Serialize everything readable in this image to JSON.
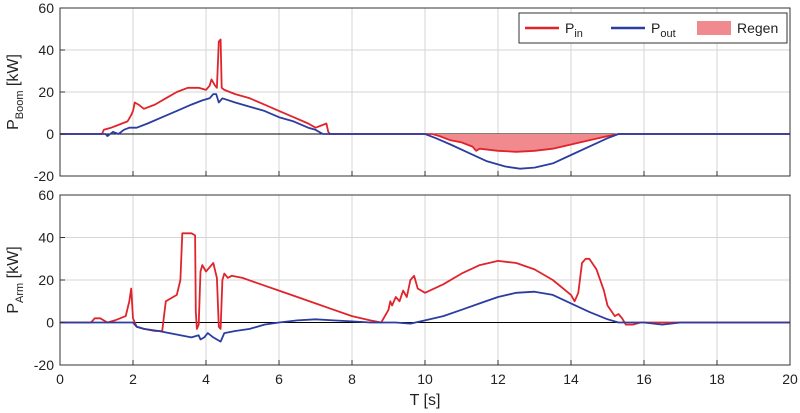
{
  "chart_data": [
    {
      "type": "line",
      "id": "boom",
      "ylabel": {
        "main": "P",
        "sub": "Boom",
        "unit": " [kW]"
      },
      "xlim": [
        0,
        20
      ],
      "ylim": [
        -20,
        60
      ],
      "xticks": [
        0,
        2,
        4,
        6,
        8,
        10,
        12,
        14,
        16,
        18,
        20
      ],
      "yticks": [
        -20,
        0,
        20,
        40,
        60
      ],
      "grid": true,
      "legend": {
        "placement": "top-right",
        "items": [
          {
            "main": "P",
            "sub": "in",
            "kind": "line",
            "color": "#e0242b"
          },
          {
            "main": "P",
            "sub": "out",
            "kind": "line",
            "color": "#2b3da0"
          },
          {
            "main": "Regen",
            "sub": "",
            "kind": "area",
            "color": "#f08a8f"
          }
        ]
      },
      "series": [
        {
          "name": "Pin",
          "color": "#e0242b",
          "points": [
            [
              0,
              0
            ],
            [
              1.15,
              0
            ],
            [
              1.2,
              2
            ],
            [
              1.4,
              3
            ],
            [
              1.55,
              4
            ],
            [
              1.7,
              5
            ],
            [
              1.85,
              6
            ],
            [
              1.95,
              9
            ],
            [
              2.0,
              11
            ],
            [
              2.05,
              15
            ],
            [
              2.15,
              14
            ],
            [
              2.3,
              12
            ],
            [
              2.6,
              14
            ],
            [
              2.9,
              17
            ],
            [
              3.2,
              20
            ],
            [
              3.5,
              22
            ],
            [
              3.8,
              22
            ],
            [
              4.0,
              21
            ],
            [
              4.1,
              23
            ],
            [
              4.15,
              26
            ],
            [
              4.25,
              23
            ],
            [
              4.3,
              22
            ],
            [
              4.35,
              44
            ],
            [
              4.4,
              45
            ],
            [
              4.43,
              22
            ],
            [
              4.5,
              21
            ],
            [
              4.8,
              19
            ],
            [
              5.2,
              17
            ],
            [
              5.6,
              14
            ],
            [
              6.0,
              11
            ],
            [
              6.4,
              8
            ],
            [
              6.8,
              5
            ],
            [
              7.0,
              3
            ],
            [
              7.15,
              4
            ],
            [
              7.3,
              5
            ],
            [
              7.35,
              1
            ],
            [
              7.4,
              0
            ],
            [
              10.2,
              0
            ],
            [
              10.4,
              -1
            ],
            [
              10.7,
              -3
            ],
            [
              11.0,
              -4
            ],
            [
              11.3,
              -6
            ],
            [
              11.4,
              -8
            ],
            [
              11.5,
              -7
            ],
            [
              12.0,
              -8
            ],
            [
              12.5,
              -8.5
            ],
            [
              13.0,
              -8
            ],
            [
              13.5,
              -7
            ],
            [
              14.0,
              -5
            ],
            [
              14.5,
              -3
            ],
            [
              15.0,
              -1
            ],
            [
              15.3,
              0
            ],
            [
              20,
              0
            ]
          ]
        },
        {
          "name": "Pout",
          "color": "#2b3da0",
          "points": [
            [
              0,
              0
            ],
            [
              1.25,
              0
            ],
            [
              1.3,
              -1
            ],
            [
              1.45,
              1
            ],
            [
              1.6,
              0
            ],
            [
              1.75,
              2
            ],
            [
              1.9,
              3
            ],
            [
              2.1,
              3
            ],
            [
              2.4,
              5
            ],
            [
              2.8,
              8
            ],
            [
              3.2,
              11
            ],
            [
              3.6,
              14
            ],
            [
              3.9,
              16
            ],
            [
              4.1,
              17
            ],
            [
              4.2,
              19
            ],
            [
              4.28,
              19
            ],
            [
              4.35,
              15
            ],
            [
              4.45,
              17
            ],
            [
              4.8,
              15
            ],
            [
              5.2,
              13
            ],
            [
              5.6,
              11
            ],
            [
              6.0,
              8
            ],
            [
              6.4,
              6
            ],
            [
              6.8,
              3
            ],
            [
              7.0,
              2
            ],
            [
              7.2,
              0
            ],
            [
              10.0,
              0
            ],
            [
              10.3,
              -2
            ],
            [
              10.7,
              -5
            ],
            [
              11.2,
              -9
            ],
            [
              11.7,
              -13
            ],
            [
              12.2,
              -15.5
            ],
            [
              12.6,
              -16.5
            ],
            [
              13.0,
              -16
            ],
            [
              13.5,
              -14
            ],
            [
              14.0,
              -10
            ],
            [
              14.5,
              -6
            ],
            [
              15.0,
              -2
            ],
            [
              15.3,
              0
            ],
            [
              20,
              0
            ]
          ]
        }
      ],
      "regen": [
        [
          10.2,
          0
        ],
        [
          10.4,
          -1
        ],
        [
          10.7,
          -3
        ],
        [
          11.0,
          -4
        ],
        [
          11.3,
          -6
        ],
        [
          11.4,
          -8
        ],
        [
          11.5,
          -7
        ],
        [
          12.0,
          -8
        ],
        [
          12.5,
          -8.5
        ],
        [
          13.0,
          -8
        ],
        [
          13.5,
          -7
        ],
        [
          14.0,
          -5
        ],
        [
          14.5,
          -3
        ],
        [
          15.0,
          -1
        ],
        [
          15.3,
          0
        ]
      ]
    },
    {
      "type": "line",
      "id": "arm",
      "ylabel": {
        "main": "P",
        "sub": "Arm",
        "unit": " [kW]"
      },
      "xlabel": "T [s]",
      "xlim": [
        0,
        20
      ],
      "ylim": [
        -20,
        60
      ],
      "xticks": [
        0,
        2,
        4,
        6,
        8,
        10,
        12,
        14,
        16,
        18,
        20
      ],
      "yticks": [
        -20,
        0,
        20,
        40,
        60
      ],
      "grid": true,
      "series": [
        {
          "name": "Pin",
          "color": "#e0242b",
          "points": [
            [
              0,
              0
            ],
            [
              0.85,
              0
            ],
            [
              0.95,
              2
            ],
            [
              1.1,
              2
            ],
            [
              1.2,
              1
            ],
            [
              1.3,
              0
            ],
            [
              1.5,
              1
            ],
            [
              1.8,
              3
            ],
            [
              1.9,
              10
            ],
            [
              1.95,
              16
            ],
            [
              2.0,
              2
            ],
            [
              2.1,
              -2
            ],
            [
              2.3,
              -3
            ],
            [
              2.6,
              -4
            ],
            [
              2.8,
              -4
            ],
            [
              2.85,
              3
            ],
            [
              2.9,
              10
            ],
            [
              3.0,
              11
            ],
            [
              3.2,
              13
            ],
            [
              3.3,
              20
            ],
            [
              3.35,
              42
            ],
            [
              3.6,
              42
            ],
            [
              3.7,
              41
            ],
            [
              3.72,
              5
            ],
            [
              3.75,
              -3
            ],
            [
              3.8,
              -1
            ],
            [
              3.85,
              24
            ],
            [
              3.9,
              27
            ],
            [
              4.0,
              24
            ],
            [
              4.1,
              26
            ],
            [
              4.2,
              28
            ],
            [
              4.3,
              21
            ],
            [
              4.35,
              -2
            ],
            [
              4.4,
              -3
            ],
            [
              4.45,
              20
            ],
            [
              4.5,
              23
            ],
            [
              4.6,
              21
            ],
            [
              4.7,
              22
            ],
            [
              5.0,
              21
            ],
            [
              5.5,
              18
            ],
            [
              6.0,
              15
            ],
            [
              6.5,
              12
            ],
            [
              7.0,
              9
            ],
            [
              7.5,
              6
            ],
            [
              8.0,
              3
            ],
            [
              8.5,
              1
            ],
            [
              8.8,
              0
            ],
            [
              8.9,
              3
            ],
            [
              9.0,
              6
            ],
            [
              9.05,
              10
            ],
            [
              9.1,
              8
            ],
            [
              9.2,
              12
            ],
            [
              9.3,
              10
            ],
            [
              9.4,
              15
            ],
            [
              9.5,
              12
            ],
            [
              9.6,
              20
            ],
            [
              9.7,
              22
            ],
            [
              9.8,
              16
            ],
            [
              10.0,
              14
            ],
            [
              10.5,
              18
            ],
            [
              11.0,
              23
            ],
            [
              11.5,
              27
            ],
            [
              12.0,
              29
            ],
            [
              12.5,
              28
            ],
            [
              13.0,
              25
            ],
            [
              13.5,
              20
            ],
            [
              14.0,
              13
            ],
            [
              14.1,
              10
            ],
            [
              14.2,
              14
            ],
            [
              14.3,
              28
            ],
            [
              14.4,
              30
            ],
            [
              14.5,
              30
            ],
            [
              14.7,
              25
            ],
            [
              14.9,
              15
            ],
            [
              15.0,
              8
            ],
            [
              15.2,
              3
            ],
            [
              15.3,
              4
            ],
            [
              15.4,
              2
            ],
            [
              15.5,
              -1
            ],
            [
              15.7,
              -1
            ],
            [
              15.9,
              0
            ],
            [
              17.0,
              0
            ],
            [
              20,
              0
            ]
          ]
        },
        {
          "name": "Pout",
          "color": "#2b3da0",
          "points": [
            [
              0,
              0
            ],
            [
              2.0,
              0
            ],
            [
              2.1,
              -2
            ],
            [
              2.3,
              -3
            ],
            [
              2.7,
              -4
            ],
            [
              3.0,
              -5
            ],
            [
              3.3,
              -6
            ],
            [
              3.6,
              -7
            ],
            [
              3.8,
              -6
            ],
            [
              3.85,
              -8
            ],
            [
              3.95,
              -7
            ],
            [
              4.05,
              -5
            ],
            [
              4.2,
              -7
            ],
            [
              4.4,
              -9
            ],
            [
              4.5,
              -5
            ],
            [
              4.8,
              -4
            ],
            [
              5.2,
              -3
            ],
            [
              5.6,
              -1
            ],
            [
              6.0,
              0
            ],
            [
              6.5,
              1
            ],
            [
              7.0,
              1.5
            ],
            [
              7.5,
              1
            ],
            [
              8.0,
              0.5
            ],
            [
              8.5,
              0
            ],
            [
              9.2,
              0
            ],
            [
              9.6,
              -0.5
            ],
            [
              10.0,
              1
            ],
            [
              10.5,
              3
            ],
            [
              11.0,
              6
            ],
            [
              11.5,
              9
            ],
            [
              12.0,
              12
            ],
            [
              12.5,
              14
            ],
            [
              13.0,
              14.5
            ],
            [
              13.5,
              13
            ],
            [
              14.0,
              9
            ],
            [
              14.5,
              5
            ],
            [
              15.0,
              1.5
            ],
            [
              15.3,
              0
            ],
            [
              16.0,
              0
            ],
            [
              16.5,
              -1
            ],
            [
              17.0,
              0
            ],
            [
              20,
              0
            ]
          ]
        }
      ]
    }
  ]
}
